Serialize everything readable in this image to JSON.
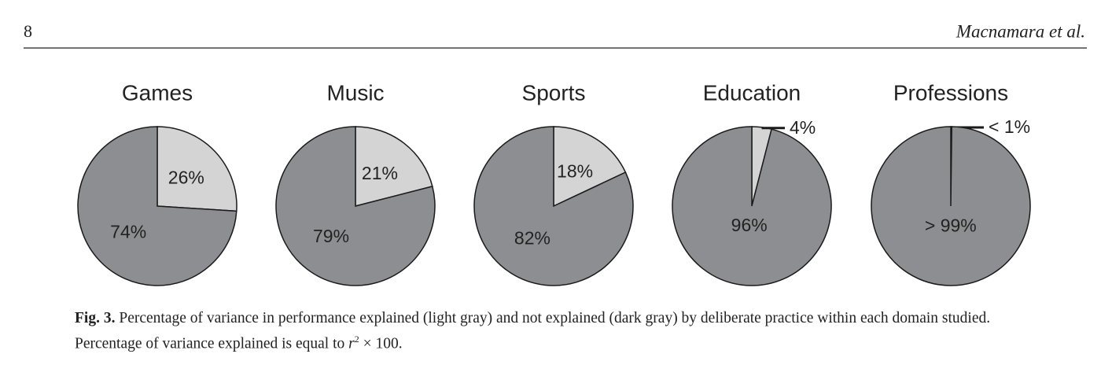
{
  "header": {
    "page_number": "8",
    "running_head": "Macnamara et al."
  },
  "chart_data": [
    {
      "type": "pie",
      "title": "Games",
      "values": [
        26,
        74
      ],
      "value_labels": [
        "26%",
        "74%"
      ],
      "colors": [
        "#d4d4d4",
        "#8d8e91"
      ]
    },
    {
      "type": "pie",
      "title": "Music",
      "values": [
        21,
        79
      ],
      "value_labels": [
        "21%",
        "79%"
      ],
      "colors": [
        "#d4d4d4",
        "#8d8e91"
      ]
    },
    {
      "type": "pie",
      "title": "Sports",
      "values": [
        18,
        82
      ],
      "value_labels": [
        "18%",
        "82%"
      ],
      "colors": [
        "#d4d4d4",
        "#8d8e91"
      ]
    },
    {
      "type": "pie",
      "title": "Education",
      "values": [
        4,
        96
      ],
      "value_labels": [
        "4%",
        "96%"
      ],
      "colors": [
        "#d4d4d4",
        "#8d8e91"
      ]
    },
    {
      "type": "pie",
      "title": "Professions",
      "values": [
        0.2,
        99.8
      ],
      "value_labels": [
        "< 1%",
        "> 99%"
      ],
      "colors": [
        "#d4d4d4",
        "#8d8e91"
      ]
    }
  ],
  "caption": {
    "label": "Fig. 3.",
    "text": "Percentage of variance in performance explained (light gray) and not explained (dark gray) by deliberate practice within each domain studied. Percentage of variance explained is equal to",
    "variable": "r",
    "exponent": "2",
    "text_end": "× 100."
  }
}
